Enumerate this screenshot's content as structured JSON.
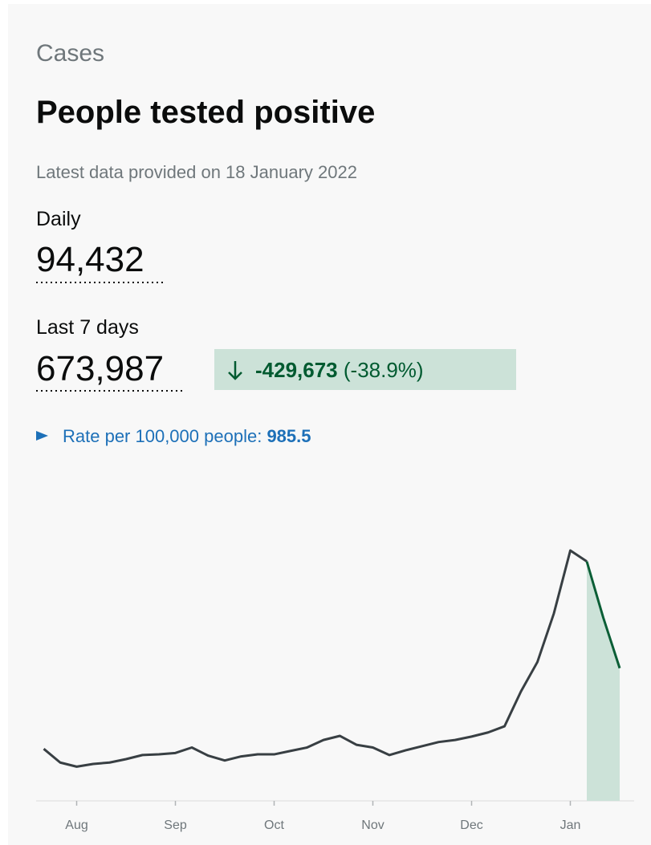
{
  "header": {
    "section": "Cases",
    "title": "People tested positive",
    "updated": "Latest data provided on 18 January 2022"
  },
  "daily": {
    "label": "Daily",
    "value": "94,432"
  },
  "weekly": {
    "label": "Last 7 days",
    "value": "673,987",
    "change": "-429,673",
    "change_percent": "(-38.9%)"
  },
  "rate": {
    "label": "Rate per 100,000 people:",
    "value": "985.5"
  },
  "chart_data": {
    "type": "line",
    "categories": [
      null,
      null,
      "Aug",
      null,
      null,
      null,
      null,
      null,
      "Sep",
      null,
      null,
      null,
      null,
      null,
      "Oct",
      null,
      null,
      null,
      null,
      null,
      "Nov",
      null,
      null,
      null,
      null,
      null,
      "Dec",
      null,
      null,
      null,
      null,
      null,
      "Jan",
      null,
      null,
      null
    ],
    "values": [
      38000,
      28000,
      25000,
      27000,
      28000,
      30500,
      33500,
      34000,
      35000,
      39000,
      33000,
      29500,
      32500,
      34000,
      34000,
      36500,
      39000,
      44500,
      47500,
      41000,
      39000,
      33500,
      37000,
      40000,
      43000,
      44500,
      47000,
      50000,
      54500,
      80000,
      101500,
      137000,
      183000,
      175000,
      134000,
      97000
    ],
    "color": "#383f43",
    "highlight_color": "#0b5e36",
    "highlight_fill": "#cce2d8"
  }
}
